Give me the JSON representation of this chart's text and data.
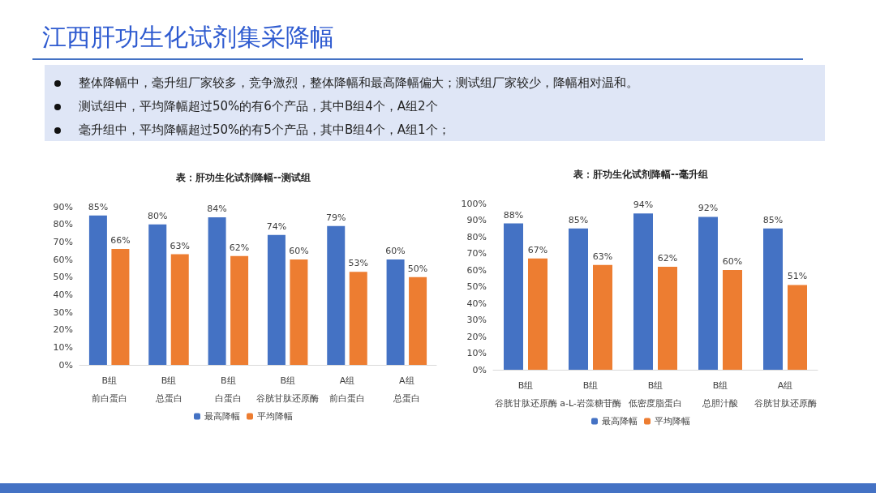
{
  "chart_data": [
    {
      "type": "other",
      "title": "江西肝功生化试剂集采降幅",
      "annotations": [
        "整体降幅中，毫升组厂家较多，竞争激烈，整体降幅和最高降幅偏大；测试组厂家较少，降幅相对温和。",
        "测试组中，平均降幅超过50%的有6个产品，其中B组4个，A组2个",
        "毫升组中，平均降幅超过50%的有5个产品，其中B组4个，A组1个；"
      ]
    },
    {
      "type": "bar",
      "title": "表：肝功生化试剂降幅--测试组",
      "categories": [
        "B组前白蛋白",
        "B组总蛋白",
        "B组白蛋白",
        "B组谷胱甘肽还原酶",
        "A组前白蛋白",
        "A组总蛋白"
      ],
      "series": [
        {
          "name": "最高降幅",
          "color": "#4472c4",
          "values": [
            85,
            80,
            84,
            74,
            79,
            60
          ],
          "value_labels": [
            "85%",
            "80%",
            "84%",
            "74%",
            "79%",
            "60%"
          ]
        },
        {
          "name": "平均降幅",
          "color": "#ed7d31",
          "values": [
            66,
            63,
            62,
            60,
            53,
            50
          ],
          "value_labels": [
            "66%",
            "63%",
            "62%",
            "60%",
            "53%",
            "50%"
          ]
        }
      ],
      "ylim": [
        0,
        90
      ],
      "yticks": [
        {
          "value": 0,
          "label": "0%"
        },
        {
          "value": 10,
          "label": "10%"
        },
        {
          "value": 20,
          "label": "20%"
        },
        {
          "value": 30,
          "label": "30%"
        },
        {
          "value": 40,
          "label": "40%"
        },
        {
          "value": 50,
          "label": "50%"
        },
        {
          "value": 60,
          "label": "60%"
        },
        {
          "value": 70,
          "label": "70%"
        },
        {
          "value": 80,
          "label": "80%"
        },
        {
          "value": 90,
          "label": "90%"
        }
      ],
      "grid": false,
      "legend": "bottom"
    },
    {
      "type": "bar",
      "title": "表：肝功生化试剂降幅--毫升组",
      "categories": [
        "B组谷胱甘肽还原酶",
        "B组a-L-岩藻糖苷酶",
        "B组低密度脂蛋白",
        "B组总胆汁酸",
        "A组谷胱甘肽还原酶"
      ],
      "series": [
        {
          "name": "最高降幅",
          "color": "#4472c4",
          "values": [
            88,
            85,
            94,
            92,
            85
          ],
          "value_labels": [
            "88%",
            "85%",
            "94%",
            "92%",
            "85%"
          ]
        },
        {
          "name": "平均降幅",
          "color": "#ed7d31",
          "values": [
            67,
            63,
            62,
            60,
            51
          ],
          "value_labels": [
            "67%",
            "63%",
            "62%",
            "60%",
            "51%"
          ]
        }
      ],
      "ylim": [
        0,
        100
      ],
      "yticks": [
        {
          "value": 0,
          "label": "0%"
        },
        {
          "value": 10,
          "label": "10%"
        },
        {
          "value": 20,
          "label": "20%"
        },
        {
          "value": 30,
          "label": "30%"
        },
        {
          "value": 40,
          "label": "40%"
        },
        {
          "value": 50,
          "label": "50%"
        },
        {
          "value": 60,
          "label": "60%"
        },
        {
          "value": 70,
          "label": "70%"
        },
        {
          "value": 80,
          "label": "80%"
        },
        {
          "value": 90,
          "label": "90%"
        },
        {
          "value": 100,
          "label": "100%"
        }
      ],
      "grid": false,
      "legend": "bottom"
    }
  ]
}
